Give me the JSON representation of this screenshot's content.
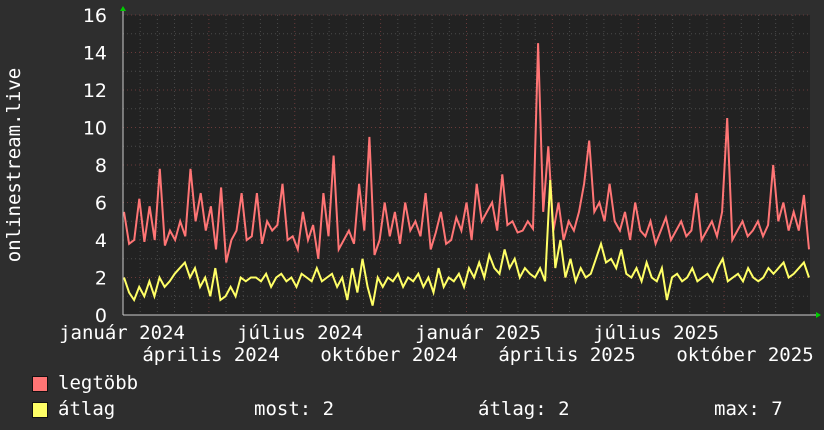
{
  "chart_data": {
    "type": "line",
    "ylabel": "onlinestream.live",
    "ylim": [
      0,
      16
    ],
    "yticks": [
      "0",
      "2",
      "4",
      "6",
      "8",
      "10",
      "12",
      "14",
      "16"
    ],
    "xticks": [
      "január 2024",
      "április 2024",
      "július 2024",
      "október 2024",
      "január 2025",
      "április 2025",
      "július 2025",
      "október 2025"
    ],
    "grid": true,
    "series": [
      {
        "name": "legtöbb",
        "color": "#ff7575",
        "values": [
          5.5,
          3.8,
          4,
          6.2,
          3.9,
          5.8,
          4,
          7.8,
          3.7,
          4.5,
          4,
          5,
          4.2,
          7.8,
          5,
          6.5,
          4.5,
          5.8,
          3.5,
          6.8,
          2.8,
          4,
          4.5,
          6.5,
          4,
          4.2,
          6.5,
          3.8,
          5,
          4.5,
          4.8,
          7,
          4,
          4.2,
          3.5,
          5.5,
          4,
          4.8,
          3,
          6.5,
          4.2,
          8.5,
          3.5,
          4,
          4.5,
          3.8,
          7,
          4.5,
          9.5,
          3.2,
          4,
          6,
          4.2,
          5.5,
          3.8,
          6,
          4.5,
          5,
          4.2,
          6.5,
          3.5,
          4.4,
          5.5,
          3.8,
          4,
          5.2,
          4.5,
          6,
          4,
          7,
          5,
          5.5,
          6,
          4.5,
          7.5,
          4.8,
          5,
          4.4,
          4.5,
          5,
          4.6,
          14.5,
          5.5,
          9,
          4.5,
          6,
          4,
          5,
          4.5,
          5.5,
          7,
          9.3,
          5.5,
          6,
          5,
          7,
          5,
          4.5,
          5.5,
          4,
          6,
          4.5,
          4.2,
          5,
          3.8,
          4.5,
          5.2,
          4,
          4.5,
          5,
          4.2,
          4.5,
          6.5,
          4,
          4.5,
          5,
          4.2,
          5.5,
          10.5,
          4,
          4.5,
          5,
          4.2,
          4.5,
          5,
          4.2,
          4.8,
          8,
          5,
          6,
          4.5,
          5.5,
          4.5,
          6.4,
          3.5
        ]
      },
      {
        "name": "átlag",
        "color": "#ffff66",
        "values": [
          2,
          1.2,
          0.8,
          1.5,
          1,
          1.8,
          1,
          2,
          1.5,
          1.8,
          2.2,
          2.5,
          2.8,
          2,
          2.5,
          1.5,
          2,
          1,
          2.5,
          0.8,
          1,
          1.5,
          1,
          2,
          1.8,
          2,
          2,
          1.8,
          2.2,
          1.5,
          2,
          2.2,
          1.8,
          2,
          1.5,
          2.2,
          2,
          1.8,
          2.5,
          1.8,
          2,
          2.2,
          1.5,
          2,
          0.8,
          2.5,
          1.2,
          3,
          1.5,
          0.5,
          2,
          1.5,
          2,
          1.8,
          2.2,
          1.5,
          2,
          1.8,
          2.2,
          1.5,
          2,
          1.2,
          2.5,
          1.5,
          2,
          1.8,
          2.2,
          1.5,
          2.5,
          2,
          2.8,
          2,
          3.2,
          2.5,
          2.2,
          3.5,
          2.5,
          3,
          2,
          2.5,
          2.2,
          2,
          2.5,
          1.8,
          7.2,
          2.5,
          4,
          2,
          3,
          1.8,
          2.5,
          2,
          2.2,
          3,
          3.8,
          2.8,
          3,
          2.5,
          3.5,
          2.2,
          2,
          2.5,
          1.8,
          2.8,
          2,
          1.8,
          2.5,
          0.8,
          2,
          2.2,
          1.8,
          2,
          2.5,
          1.8,
          2,
          2.2,
          1.8,
          2.5,
          3,
          1.8,
          2,
          2.2,
          1.8,
          2.5,
          2,
          1.8,
          2,
          2.5,
          2.2,
          2.5,
          2.8,
          2,
          2.2,
          2.5,
          2.8,
          2
        ]
      }
    ]
  },
  "legend": {
    "max_label": "legtöbb",
    "avg_label": "átlag",
    "now": "most: 2",
    "average": "átlag: 2",
    "max": "max: 7"
  }
}
